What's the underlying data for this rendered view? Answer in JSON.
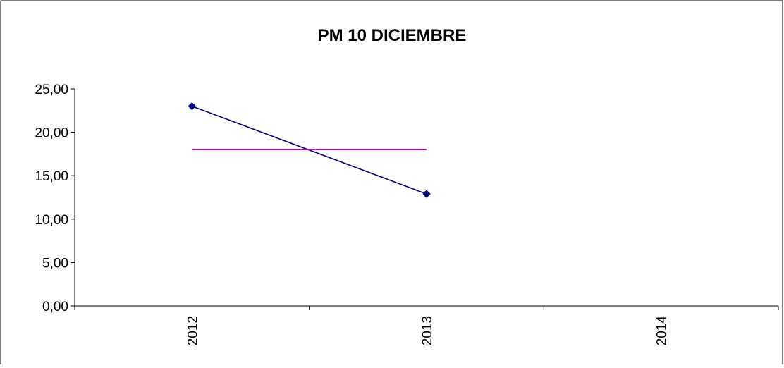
{
  "chart_data": {
    "type": "line",
    "title": "PM 10 DICIEMBRE",
    "xlabel": "",
    "ylabel": "",
    "categories": [
      "2012",
      "2013",
      "2014"
    ],
    "y_ticks": [
      "0,00",
      "5,00",
      "10,00",
      "15,00",
      "20,00",
      "25,00"
    ],
    "ylim": [
      0,
      25
    ],
    "grid": false,
    "legend": "none",
    "series": [
      {
        "values": [
          23.0,
          12.9,
          null
        ],
        "color": "#000080",
        "marker": "diamond"
      },
      {
        "values": [
          18.0,
          18.0,
          null
        ],
        "color": "#cc00cc",
        "marker": "none"
      }
    ]
  }
}
